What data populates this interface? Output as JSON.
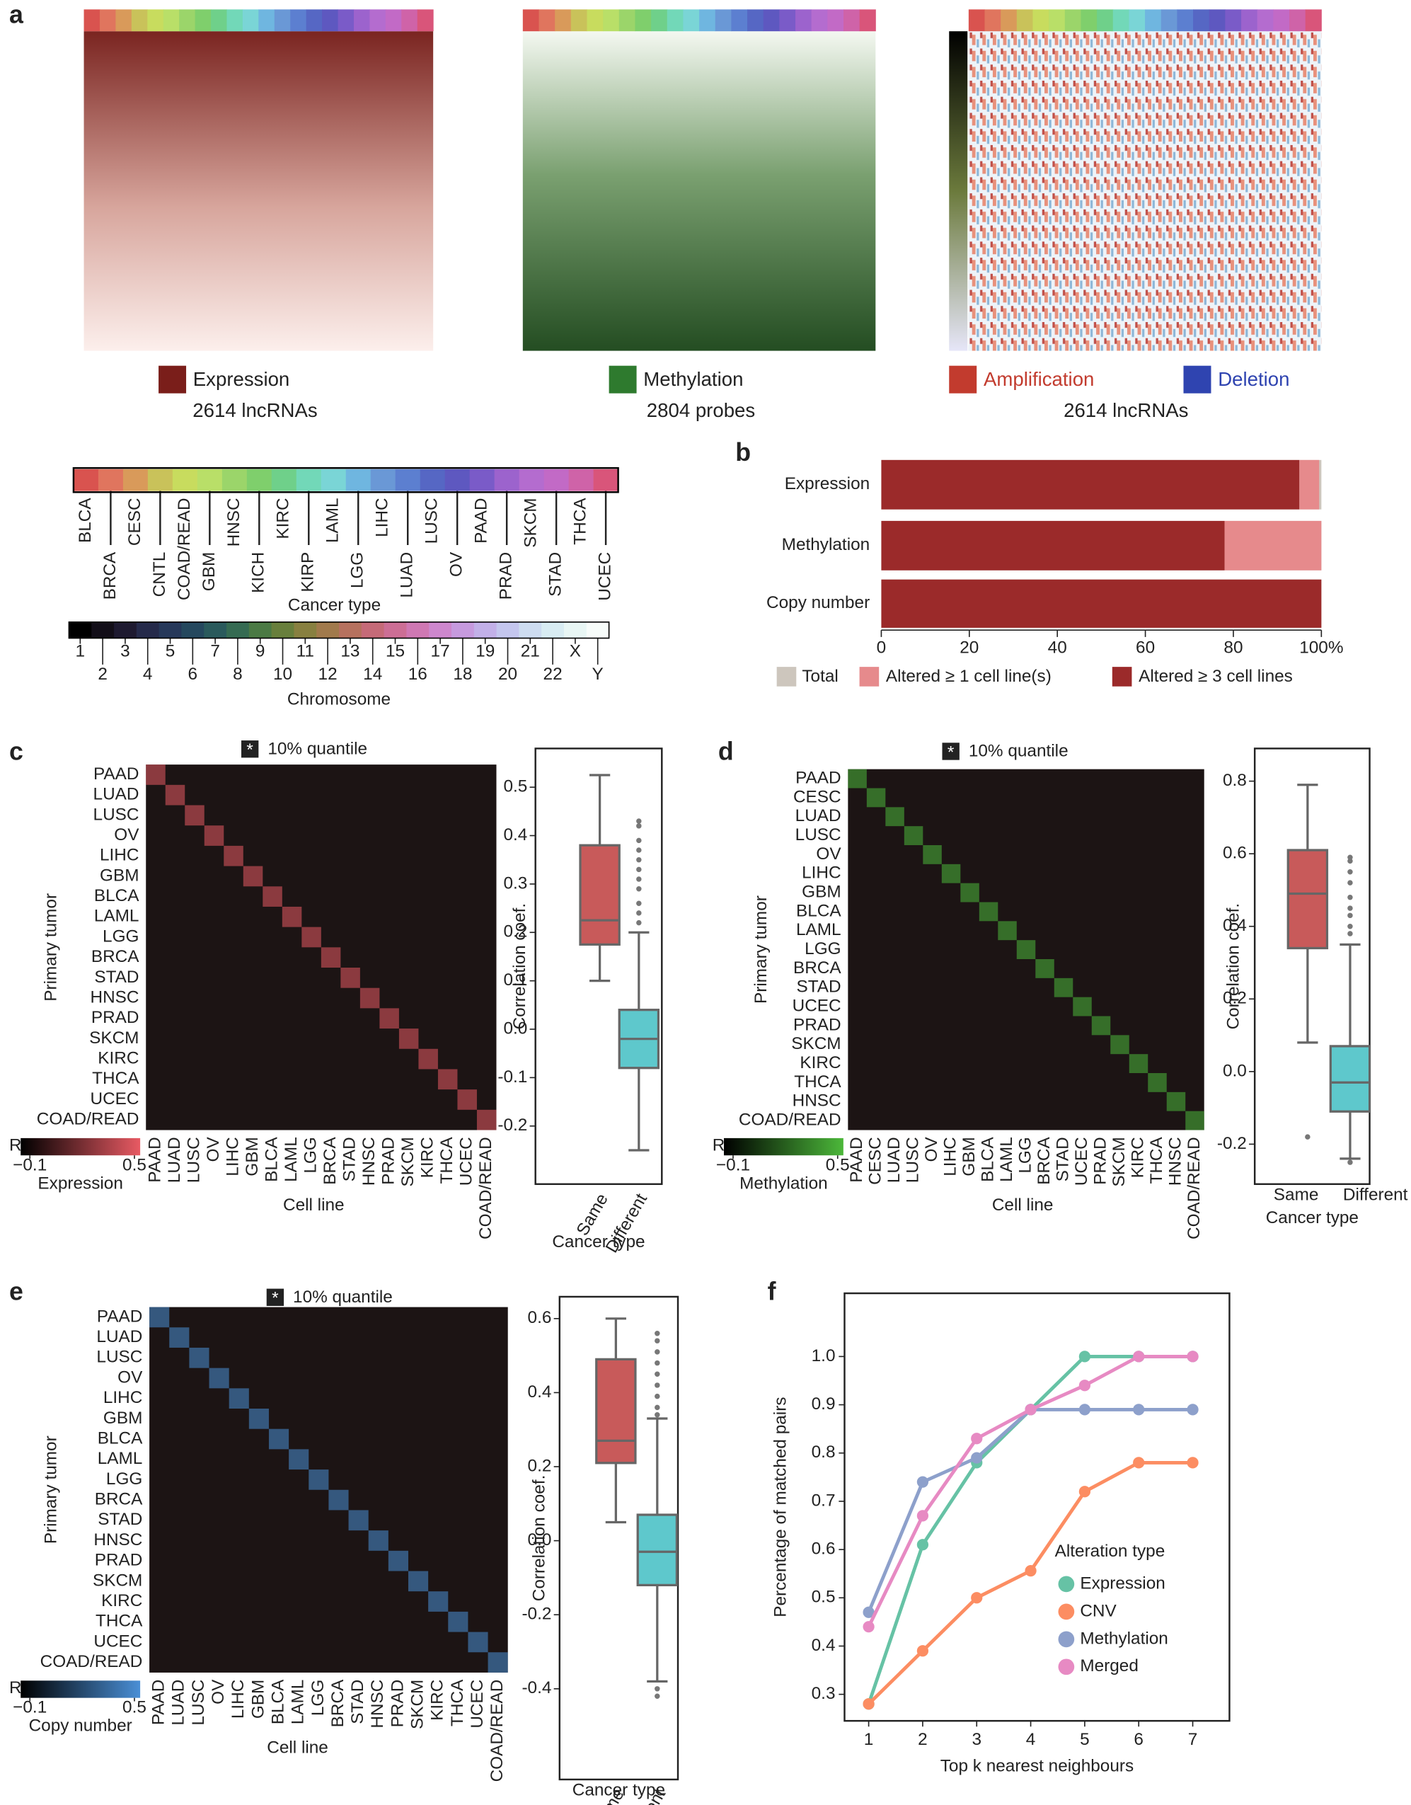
{
  "panel_labels": [
    "a",
    "b",
    "c",
    "d",
    "e",
    "f"
  ],
  "panel_a": {
    "heatmaps": [
      {
        "legend": [
          "Expression"
        ],
        "legend_colors": [
          "#7a1e1a"
        ],
        "caption": "2614 lncRNAs"
      },
      {
        "legend": [
          "Methylation"
        ],
        "legend_colors": [
          "#2e7a2e"
        ],
        "caption": "2804 probes"
      },
      {
        "legend": [
          "Amplification",
          "Deletion"
        ],
        "legend_colors": [
          "#c23b2e",
          "#2f44b0"
        ],
        "caption": "2614 lncRNAs"
      }
    ],
    "cancer_types": [
      "BLCA",
      "BRCA",
      "CESC",
      "CNTL",
      "COAD/READ",
      "GBM",
      "HNSC",
      "KICH",
      "KIRC",
      "KIRP",
      "LAML",
      "LGG",
      "LIHC",
      "LUAD",
      "LUSC",
      "OV",
      "PAAD",
      "PRAD",
      "SKCM",
      "STAD",
      "THCA",
      "UCEC"
    ],
    "cancer_colors": [
      "#d9534f",
      "#e0755e",
      "#d99a5a",
      "#c9c25a",
      "#c8dc5e",
      "#b9df68",
      "#9bd56a",
      "#7fcf6c",
      "#6fd08a",
      "#72d8b8",
      "#7ad5d6",
      "#6fb6e0",
      "#6a98d6",
      "#5c7fd0",
      "#5667c4",
      "#5e58c0",
      "#7a5bc8",
      "#9c63cd",
      "#b46ccf",
      "#c26ac6",
      "#cf63a8",
      "#d9557a"
    ],
    "cancer_label": "Cancer type",
    "chromosomes": [
      "1",
      "2",
      "3",
      "4",
      "5",
      "6",
      "7",
      "8",
      "9",
      "10",
      "11",
      "12",
      "13",
      "14",
      "15",
      "16",
      "17",
      "18",
      "19",
      "20",
      "21",
      "22",
      "X",
      "Y"
    ],
    "chromosome_colors": [
      "#000000",
      "#120e18",
      "#1e1a30",
      "#252a4a",
      "#26385a",
      "#25485e",
      "#2a5a5c",
      "#356b52",
      "#4b7a44",
      "#687f3c",
      "#888040",
      "#a17a4c",
      "#b6715e",
      "#c56a78",
      "#cc6e95",
      "#cf78b3",
      "#cd87cd",
      "#c69ade",
      "#c2b0e8",
      "#c4c6ee",
      "#cddcf0",
      "#d8ecf2",
      "#e8f6f4",
      "#f7fcfa"
    ],
    "chromosome_label": "Chromosome"
  },
  "chart_data": [
    {
      "type": "hbar",
      "categories": [
        "Expression",
        "Methylation",
        "Copy number"
      ],
      "series": [
        {
          "name": "Total",
          "color": "#cdc6bd",
          "values": [
            100,
            100,
            100
          ]
        },
        {
          "name": "Altered ≥ 1 cell line(s)",
          "color": "#e68a8c",
          "values": [
            4.5,
            22,
            0
          ]
        },
        {
          "name": "Altered ≥ 3 cell lines",
          "color": "#9b2a2a",
          "values": [
            95,
            78,
            100
          ]
        }
      ],
      "xlim": [
        0,
        100
      ],
      "xticks": [
        0,
        20,
        40,
        60,
        80,
        {
          "value": 100,
          "label": "100%"
        }
      ]
    },
    {
      "type": "heatmap",
      "legend_marker": "*",
      "legend_text": "10% quantile",
      "rows": [
        "PAAD",
        "LUAD",
        "LUSC",
        "OV",
        "LIHC",
        "GBM",
        "BLCA",
        "LAML",
        "LGG",
        "BRCA",
        "STAD",
        "HNSC",
        "PRAD",
        "SKCM",
        "KIRC",
        "THCA",
        "UCEC",
        "COAD/READ"
      ],
      "columns": [
        "PAAD",
        "LUAD",
        "LUSC",
        "OV",
        "LIHC",
        "GBM",
        "BLCA",
        "LAML",
        "LGG",
        "BRCA",
        "STAD",
        "HNSC",
        "PRAD",
        "SKCM",
        "KIRC",
        "THCA",
        "UCEC",
        "COAD/READ"
      ],
      "ylabel": "Primary tumor",
      "xlabel": "Cell line",
      "colorbar_label": "R",
      "colorbar_ticks": [
        {
          "value": -0.1,
          "label": "−0.1"
        },
        0.5
      ],
      "colorbar_title": "Expression",
      "color": "#e85a63"
    },
    {
      "type": "box",
      "categories": [
        "Same",
        "Different"
      ],
      "colors": [
        "#c85a5a",
        "#5ec8cc"
      ],
      "boxes": [
        {
          "min": 0.1,
          "q1": 0.175,
          "median": 0.225,
          "q3": 0.38,
          "max": 0.525,
          "outliers": []
        },
        {
          "min": -0.25,
          "q1": -0.08,
          "median": -0.02,
          "q3": 0.04,
          "max": 0.2,
          "outliers": [
            0.43,
            0.42,
            0.39,
            0.37,
            0.35,
            0.33,
            0.31,
            0.29,
            0.26,
            0.24,
            0.22
          ]
        }
      ],
      "ylabel": "Correlation coef.",
      "xlabel": "Cancer type",
      "ylim": [
        -0.32,
        0.58
      ],
      "yticks": [
        -0.2,
        -0.1,
        {
          "value": 0,
          "label": "0.0"
        },
        0.1,
        0.2,
        0.3,
        0.4,
        0.5
      ]
    },
    {
      "type": "heatmap",
      "legend_marker": "*",
      "legend_text": "10% quantile",
      "rows": [
        "PAAD",
        "CESC",
        "LUAD",
        "LUSC",
        "OV",
        "LIHC",
        "GBM",
        "BLCA",
        "LAML",
        "LGG",
        "BRCA",
        "STAD",
        "UCEC",
        "PRAD",
        "SKCM",
        "KIRC",
        "THCA",
        "HNSC",
        "COAD/READ"
      ],
      "columns": [
        "PAAD",
        "CESC",
        "LUAD",
        "LUSC",
        "OV",
        "LIHC",
        "GBM",
        "BLCA",
        "LAML",
        "LGG",
        "BRCA",
        "STAD",
        "UCEC",
        "PRAD",
        "SKCM",
        "KIRC",
        "THCA",
        "HNSC",
        "COAD/READ"
      ],
      "ylabel": "Primary tumor",
      "xlabel": "Cell line",
      "colorbar_label": "R",
      "colorbar_ticks": [
        {
          "value": -0.1,
          "label": "−0.1"
        },
        0.5
      ],
      "colorbar_title": "Methylation",
      "color": "#4cb83a"
    },
    {
      "type": "box",
      "categories": [
        "Same",
        "Different"
      ],
      "colors": [
        "#c85a5a",
        "#5ec8cc"
      ],
      "boxes": [
        {
          "min": 0.08,
          "q1": 0.34,
          "median": 0.49,
          "q3": 0.61,
          "max": 0.79,
          "outliers": [
            -0.18
          ]
        },
        {
          "min": -0.24,
          "q1": -0.11,
          "median": -0.03,
          "q3": 0.07,
          "max": 0.35,
          "outliers": [
            0.59,
            0.58,
            0.55,
            0.52,
            0.48,
            0.45,
            0.43,
            0.4,
            0.38,
            -0.25
          ]
        }
      ],
      "ylabel": "Correlation coef.",
      "xlabel": "Cancer type",
      "ylim": [
        -0.31,
        0.89
      ],
      "yticks": [
        -0.2,
        {
          "value": 0,
          "label": "0.0"
        },
        0.2,
        0.4,
        0.6,
        0.8
      ]
    },
    {
      "type": "heatmap",
      "legend_marker": "*",
      "legend_text": "10% quantile",
      "rows": [
        "PAAD",
        "LUAD",
        "LUSC",
        "OV",
        "LIHC",
        "GBM",
        "BLCA",
        "LAML",
        "LGG",
        "BRCA",
        "STAD",
        "HNSC",
        "PRAD",
        "SKCM",
        "KIRC",
        "THCA",
        "UCEC",
        "COAD/READ"
      ],
      "columns": [
        "PAAD",
        "LUAD",
        "LUSC",
        "OV",
        "LIHC",
        "GBM",
        "BLCA",
        "LAML",
        "LGG",
        "BRCA",
        "STAD",
        "HNSC",
        "PRAD",
        "SKCM",
        "KIRC",
        "THCA",
        "UCEC",
        "COAD/READ"
      ],
      "ylabel": "Primary tumor",
      "xlabel": "Cell line",
      "colorbar_label": "R",
      "colorbar_ticks": [
        {
          "value": -0.1,
          "label": "−0.1"
        },
        0.5
      ],
      "colorbar_title": "Copy number",
      "color": "#4a8fd6"
    },
    {
      "type": "box",
      "categories": [
        "Same",
        "Different"
      ],
      "colors": [
        "#c85a5a",
        "#5ec8cc"
      ],
      "boxes": [
        {
          "min": 0.05,
          "q1": 0.21,
          "median": 0.27,
          "q3": 0.49,
          "max": 0.6,
          "outliers": []
        },
        {
          "min": -0.38,
          "q1": -0.12,
          "median": -0.03,
          "q3": 0.07,
          "max": 0.33,
          "outliers": [
            0.56,
            0.54,
            0.51,
            0.48,
            0.45,
            0.42,
            0.39,
            0.36,
            0.34,
            -0.4,
            -0.42
          ]
        }
      ],
      "ylabel": "Correlation coef.",
      "xlabel": "Cancer type",
      "ylim": [
        -0.645,
        0.659
      ],
      "yticks": [
        -0.4,
        -0.2,
        {
          "value": 0,
          "label": "0.0"
        },
        0.2,
        0.4,
        0.6
      ]
    },
    {
      "type": "line",
      "x": [
        1,
        2,
        3,
        4,
        5,
        6,
        7
      ],
      "series": [
        {
          "name": "Expression",
          "color": "#66c2a5",
          "values": [
            0.28,
            0.61,
            0.78,
            0.89,
            1.0,
            1.0,
            1.0
          ]
        },
        {
          "name": "CNV",
          "color": "#fc8d62",
          "values": [
            0.28,
            0.39,
            0.5,
            0.556,
            0.72,
            0.78,
            0.78
          ]
        },
        {
          "name": "Methylation",
          "color": "#8da0cb",
          "values": [
            0.47,
            0.74,
            0.79,
            0.89,
            0.89,
            0.89,
            0.89
          ]
        },
        {
          "name": "Merged",
          "color": "#e78ac3",
          "values": [
            0.44,
            0.67,
            0.83,
            0.89,
            0.94,
            1.0,
            1.0
          ]
        }
      ],
      "legend_title": "Alteration type",
      "xlabel": "Top k nearest neighbours",
      "ylabel": "Percentage of matched pairs",
      "xlim": [
        0.553,
        7.68
      ],
      "xticks": [
        1,
        2,
        3,
        4,
        5,
        6,
        7
      ],
      "ylim": [
        0.245,
        1.131
      ],
      "yticks": [
        0.3,
        0.4,
        0.5,
        0.6,
        0.7,
        0.8,
        0.9,
        {
          "value": 1,
          "label": "1.0"
        }
      ]
    }
  ]
}
